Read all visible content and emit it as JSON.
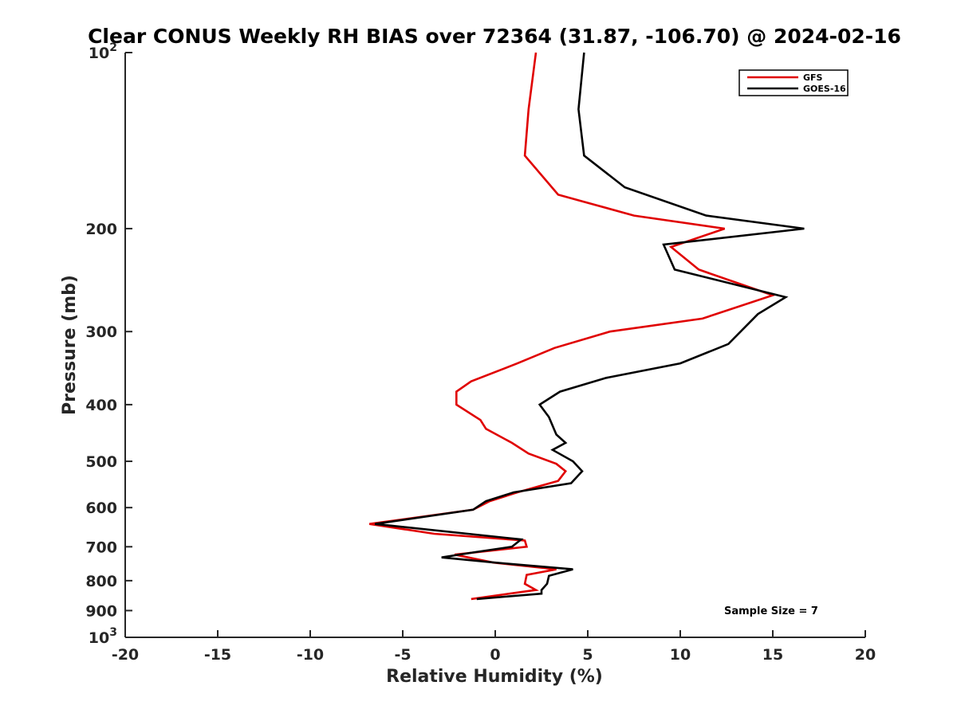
{
  "chart_data": {
    "type": "line",
    "title": "Clear CONUS Weekly RH BIAS over 72364 (31.87, -106.70) @ 2024-02-16",
    "xlabel": "Relative Humidity (%)",
    "ylabel": "Pressure (mb)",
    "xlim": [
      -20,
      20
    ],
    "ylim": [
      100,
      1000
    ],
    "yscale": "log",
    "y_reversed": true,
    "x_ticks": [
      "-20",
      "-15",
      "-10",
      "-5",
      "0",
      "5",
      "10",
      "15",
      "20"
    ],
    "y_ticks": [
      {
        "value": 100,
        "base": "10",
        "exp": "2"
      },
      {
        "value": 200,
        "label": "200"
      },
      {
        "value": 300,
        "label": "300"
      },
      {
        "value": 400,
        "label": "400"
      },
      {
        "value": 500,
        "label": "500"
      },
      {
        "value": 600,
        "label": "600"
      },
      {
        "value": 700,
        "label": "700"
      },
      {
        "value": 800,
        "label": "800"
      },
      {
        "value": 900,
        "label": "900"
      },
      {
        "value": 1000,
        "base": "10",
        "exp": "3"
      }
    ],
    "legend_position": "top-right",
    "grid": false,
    "annotation": "Sample Size = 7",
    "series": [
      {
        "name": "GFS",
        "color": "#e00000",
        "points": [
          [
            2.2,
            100
          ],
          [
            1.8,
            125
          ],
          [
            1.6,
            150
          ],
          [
            3.4,
            175
          ],
          [
            7.5,
            190
          ],
          [
            12.4,
            200
          ],
          [
            9.5,
            215
          ],
          [
            11.0,
            235
          ],
          [
            15.0,
            260
          ],
          [
            11.2,
            285
          ],
          [
            6.2,
            300
          ],
          [
            3.2,
            320
          ],
          [
            1.2,
            340
          ],
          [
            -1.3,
            365
          ],
          [
            -2.1,
            380
          ],
          [
            -2.1,
            400
          ],
          [
            -0.8,
            425
          ],
          [
            -0.5,
            440
          ],
          [
            0.9,
            465
          ],
          [
            1.8,
            485
          ],
          [
            3.3,
            505
          ],
          [
            3.8,
            520
          ],
          [
            3.4,
            540
          ],
          [
            1.2,
            565
          ],
          [
            -0.3,
            585
          ],
          [
            -1.2,
            605
          ],
          [
            -6.8,
            640
          ],
          [
            -3.3,
            665
          ],
          [
            1.6,
            683
          ],
          [
            1.7,
            700
          ],
          [
            -2.2,
            722
          ],
          [
            -0.1,
            745
          ],
          [
            3.3,
            765
          ],
          [
            1.7,
            782
          ],
          [
            1.6,
            810
          ],
          [
            2.2,
            830
          ],
          [
            -1.3,
            860
          ]
        ]
      },
      {
        "name": "GOES-16",
        "color": "#000000",
        "points": [
          [
            4.8,
            100
          ],
          [
            4.5,
            125
          ],
          [
            4.8,
            150
          ],
          [
            7.0,
            170
          ],
          [
            11.4,
            190
          ],
          [
            16.7,
            200
          ],
          [
            9.1,
            213
          ],
          [
            9.7,
            235
          ],
          [
            15.7,
            262
          ],
          [
            14.2,
            280
          ],
          [
            12.6,
            315
          ],
          [
            10.0,
            340
          ],
          [
            6.0,
            360
          ],
          [
            3.5,
            380
          ],
          [
            2.4,
            400
          ],
          [
            2.9,
            420
          ],
          [
            3.3,
            450
          ],
          [
            3.8,
            465
          ],
          [
            3.1,
            478
          ],
          [
            4.2,
            500
          ],
          [
            4.7,
            520
          ],
          [
            4.1,
            545
          ],
          [
            1.0,
            565
          ],
          [
            -0.5,
            585
          ],
          [
            -1.2,
            605
          ],
          [
            -6.5,
            640
          ],
          [
            1.4,
            680
          ],
          [
            0.9,
            700
          ],
          [
            -1.1,
            715
          ],
          [
            -2.9,
            730
          ],
          [
            0.0,
            745
          ],
          [
            4.2,
            765
          ],
          [
            2.9,
            785
          ],
          [
            2.8,
            810
          ],
          [
            2.5,
            830
          ],
          [
            2.5,
            842
          ],
          [
            -1.0,
            860
          ]
        ]
      }
    ]
  }
}
